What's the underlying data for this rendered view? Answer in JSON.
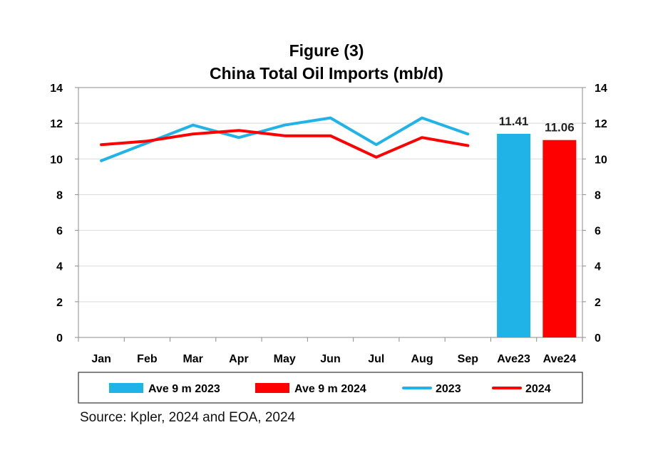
{
  "chart_data": {
    "type": "line",
    "title": "Figure (3)",
    "subtitle": "China Total Oil Imports (mb/d)",
    "categories": [
      "Jan",
      "Feb",
      "Mar",
      "Apr",
      "May",
      "Jun",
      "Jul",
      "Aug",
      "Sep",
      "Ave23",
      "Ave24"
    ],
    "ylim": [
      0,
      14
    ],
    "yticks": [
      "0",
      "2",
      "4",
      "6",
      "8",
      "10",
      "12",
      "14"
    ],
    "secondary_ylim": [
      0,
      14
    ],
    "grid": true,
    "legend_position": "bottom",
    "line_series": [
      {
        "name": "2023",
        "color": "#1fb3e8",
        "values": [
          9.9,
          10.9,
          11.9,
          11.2,
          11.9,
          12.3,
          10.8,
          12.3,
          11.4
        ]
      },
      {
        "name": "2024",
        "color": "#ff0000",
        "values": [
          10.8,
          11.0,
          11.4,
          11.6,
          11.3,
          11.3,
          10.1,
          11.2,
          10.75
        ]
      }
    ],
    "bar_series": [
      {
        "name": "Ave 9 m 2023",
        "category": "Ave23",
        "color": "#1fb3e8",
        "value": 11.41,
        "label": "11.41"
      },
      {
        "name": "Ave 9 m 2024",
        "category": "Ave24",
        "color": "#ff0000",
        "value": 11.06,
        "label": "11.06"
      }
    ],
    "legend": [
      {
        "label": "Ave 9 m 2023",
        "kind": "bar",
        "color": "#1fb3e8"
      },
      {
        "label": "Ave 9 m 2024",
        "kind": "bar",
        "color": "#ff0000"
      },
      {
        "label": "2023",
        "kind": "line",
        "color": "#1fb3e8"
      },
      {
        "label": "2024",
        "kind": "line",
        "color": "#ff0000"
      }
    ]
  },
  "source": "Source: Kpler, 2024 and EOA, 2024"
}
